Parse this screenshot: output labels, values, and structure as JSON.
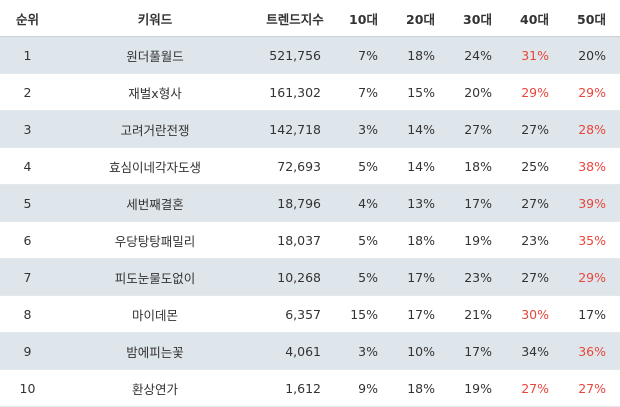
{
  "table": {
    "header": [
      "순위",
      "키워드",
      "트렌드지수",
      "10대",
      "20대",
      "30대",
      "40대",
      "50대"
    ],
    "highlight_color": "#e8463c",
    "rows": [
      {
        "cells": [
          "1",
          "원더풀월드",
          "521,756",
          "7%",
          "18%",
          "24%",
          "31%",
          "20%"
        ],
        "highlighted": [
          6
        ]
      },
      {
        "cells": [
          "2",
          "재벌x형사",
          "161,302",
          "7%",
          "15%",
          "20%",
          "29%",
          "29%"
        ],
        "highlighted": [
          6,
          7
        ]
      },
      {
        "cells": [
          "3",
          "고려거란전쟁",
          "142,718",
          "3%",
          "14%",
          "27%",
          "27%",
          "28%"
        ],
        "highlighted": [
          7
        ]
      },
      {
        "cells": [
          "4",
          "효심이네각자도생",
          "72,693",
          "5%",
          "14%",
          "18%",
          "25%",
          "38%"
        ],
        "highlighted": [
          7
        ]
      },
      {
        "cells": [
          "5",
          "세번째결혼",
          "18,796",
          "4%",
          "13%",
          "17%",
          "27%",
          "39%"
        ],
        "highlighted": [
          7
        ]
      },
      {
        "cells": [
          "6",
          "우당탕탕패밀리",
          "18,037",
          "5%",
          "18%",
          "19%",
          "23%",
          "35%"
        ],
        "highlighted": [
          7
        ]
      },
      {
        "cells": [
          "7",
          "피도눈물도없이",
          "10,268",
          "5%",
          "17%",
          "23%",
          "27%",
          "29%"
        ],
        "highlighted": [
          7
        ]
      },
      {
        "cells": [
          "8",
          "마이데몬",
          "6,357",
          "15%",
          "17%",
          "21%",
          "30%",
          "17%"
        ],
        "highlighted": [
          6
        ]
      },
      {
        "cells": [
          "9",
          "밤에피는꽃",
          "4,061",
          "3%",
          "10%",
          "17%",
          "34%",
          "36%"
        ],
        "highlighted": [
          7
        ]
      },
      {
        "cells": [
          "10",
          "환상연가",
          "1,612",
          "9%",
          "18%",
          "19%",
          "27%",
          "27%"
        ],
        "highlighted": [
          6,
          7
        ]
      }
    ]
  }
}
